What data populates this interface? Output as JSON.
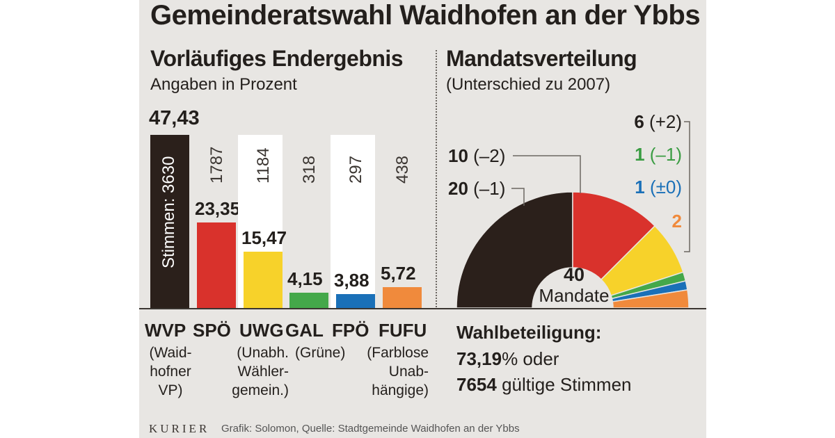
{
  "title": "Gemeinderatswahl Waidhofen an der Ybbs",
  "left": {
    "heading": "Vorläufiges Endergebnis",
    "subheading": "Angaben in Prozent"
  },
  "right": {
    "heading": "Mandatsverteilung",
    "subheading": "(Unterschied zu 2007)",
    "center_number": "40",
    "center_label": "Mandate"
  },
  "chart_data": [
    {
      "type": "bar",
      "categories": [
        "WVP",
        "SPÖ",
        "UWG",
        "GAL",
        "FPÖ",
        "FUFU"
      ],
      "values": [
        47.43,
        23.35,
        15.47,
        4.15,
        3.88,
        5.72
      ],
      "value_labels": [
        "47,43",
        "23,35",
        "15,47",
        "4,15",
        "3,88",
        "5,72"
      ],
      "votes": [
        "Stimmen: 3630",
        "1787",
        "1184",
        "318",
        "297",
        "438"
      ],
      "colors": [
        "#2b201b",
        "#d9322c",
        "#f7d22a",
        "#44a84a",
        "#1a70b8",
        "#f08a3c"
      ],
      "descriptions": [
        [
          "(Waid-",
          "hofner",
          "VP)"
        ],
        [],
        [
          "(Unabh.",
          "Wähler-",
          "gemein.)"
        ],
        [
          "(Grüne)"
        ],
        [],
        [
          "(Farblose",
          "Unab-",
          "hängige)"
        ]
      ],
      "ylim": [
        0,
        50
      ]
    },
    {
      "type": "pie",
      "categories": [
        "WVP",
        "SPÖ",
        "UWG",
        "GAL",
        "FPÖ",
        "FUFU"
      ],
      "values": [
        20,
        10,
        6,
        1,
        1,
        2
      ],
      "labels": [
        "20 (–1)",
        "10 (–2)",
        "6 (+2)",
        "1 (–1)",
        "1 (±0)",
        "2"
      ],
      "colors": [
        "#2b201b",
        "#d9322c",
        "#f7d22a",
        "#44a84a",
        "#1a70b8",
        "#f08a3c"
      ],
      "label_colors": [
        "#231f1c",
        "#231f1c",
        "#231f1c",
        "#3a9c42",
        "#1a70b8",
        "#f08a3c"
      ],
      "total": 40
    }
  ],
  "turnout": {
    "heading": "Wahlbeteiligung:",
    "percent": "73,19",
    "percent_suffix": "% oder",
    "votes": "7654",
    "votes_suffix": " gültige Stimmen"
  },
  "footer": {
    "brand": "KURIER",
    "credit": "Grafik: Solomon, Quelle: Stadtgemeinde Waidhofen an der Ybbs"
  }
}
